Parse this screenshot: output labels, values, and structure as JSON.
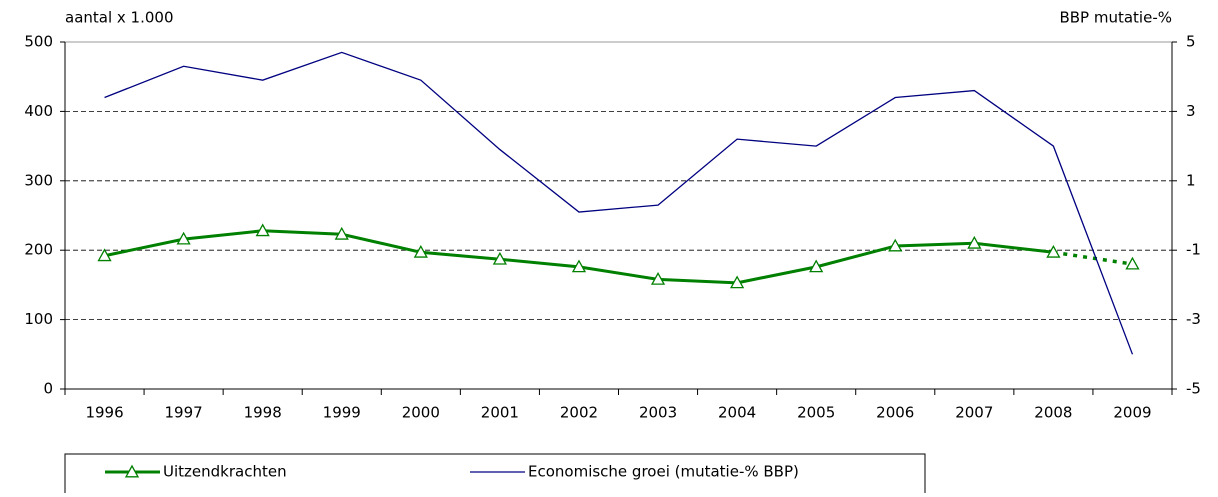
{
  "chart_data": {
    "type": "line",
    "y_axis_label": "aantal x 1.000",
    "y2_axis_label": "BBP mutatie-%",
    "categories": [
      "1996",
      "1997",
      "1998",
      "1999",
      "2000",
      "2001",
      "2002",
      "2003",
      "2004",
      "2005",
      "2006",
      "2007",
      "2008",
      "2009"
    ],
    "series": [
      {
        "name": "Uitzendkrachten",
        "color": "#008000",
        "axis": "y",
        "marker": "triangle",
        "values": [
          192,
          216,
          228,
          223,
          197,
          187,
          176,
          158,
          153,
          176,
          206,
          210,
          197,
          180
        ]
      },
      {
        "name": "Economische groei (mutatie-% BBP)",
        "color": "#000080",
        "axis": "y2",
        "values": [
          3.4,
          4.3,
          3.9,
          4.7,
          3.9,
          1.9,
          0.1,
          0.3,
          2.2,
          2.0,
          3.4,
          3.6,
          2.0,
          -4.0
        ]
      }
    ],
    "ylim": [
      0,
      500
    ],
    "yticks": [
      0,
      100,
      200,
      300,
      400,
      500
    ],
    "y2lim": [
      -5,
      5
    ],
    "y2ticks": [
      -5,
      -3,
      -1,
      1,
      3,
      5
    ],
    "grid": true
  }
}
